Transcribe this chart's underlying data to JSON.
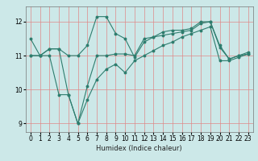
{
  "title": "",
  "xlabel": "Humidex (Indice chaleur)",
  "ylabel": "",
  "bg_color": "#cce8e8",
  "line_color": "#2e7d6e",
  "grid_color": "#e08888",
  "xlim": [
    -0.5,
    23.5
  ],
  "ylim": [
    8.75,
    12.45
  ],
  "xticks": [
    0,
    1,
    2,
    3,
    4,
    5,
    6,
    7,
    8,
    9,
    10,
    11,
    12,
    13,
    14,
    15,
    16,
    17,
    18,
    19,
    20,
    21,
    22,
    23
  ],
  "yticks": [
    9,
    10,
    11,
    12
  ],
  "line1_x": [
    0,
    1,
    2,
    3,
    4,
    5,
    6,
    7,
    8,
    9,
    10,
    11,
    12,
    13,
    14,
    15,
    16,
    17,
    18,
    19,
    20,
    21,
    22,
    23
  ],
  "line1_y": [
    11.5,
    11.0,
    11.2,
    11.2,
    11.0,
    11.0,
    11.3,
    12.15,
    12.15,
    11.65,
    11.5,
    10.95,
    11.4,
    11.55,
    11.7,
    11.75,
    11.75,
    11.8,
    12.0,
    12.0,
    11.3,
    10.9,
    11.0,
    11.1
  ],
  "line2_x": [
    0,
    1,
    2,
    3,
    4,
    5,
    6,
    7,
    8,
    9,
    10,
    11,
    12,
    13,
    14,
    15,
    16,
    17,
    18,
    19,
    20,
    21,
    22,
    23
  ],
  "line2_y": [
    11.0,
    11.0,
    11.2,
    11.2,
    9.85,
    9.0,
    10.1,
    11.0,
    11.0,
    11.05,
    11.05,
    11.0,
    11.5,
    11.55,
    11.6,
    11.65,
    11.7,
    11.75,
    11.95,
    12.0,
    11.25,
    10.9,
    11.0,
    11.05
  ],
  "line3_x": [
    0,
    1,
    2,
    3,
    4,
    5,
    6,
    7,
    8,
    9,
    10,
    11,
    12,
    13,
    14,
    15,
    16,
    17,
    18,
    19,
    20,
    21,
    22,
    23
  ],
  "line3_y": [
    11.0,
    11.0,
    11.0,
    9.85,
    9.85,
    9.0,
    9.7,
    10.3,
    10.6,
    10.75,
    10.5,
    10.85,
    11.0,
    11.15,
    11.3,
    11.4,
    11.55,
    11.65,
    11.75,
    11.85,
    10.85,
    10.85,
    10.95,
    11.05
  ],
  "xlabel_fontsize": 6,
  "tick_fontsize": 5.5,
  "marker_size": 1.8,
  "line_width": 0.8
}
